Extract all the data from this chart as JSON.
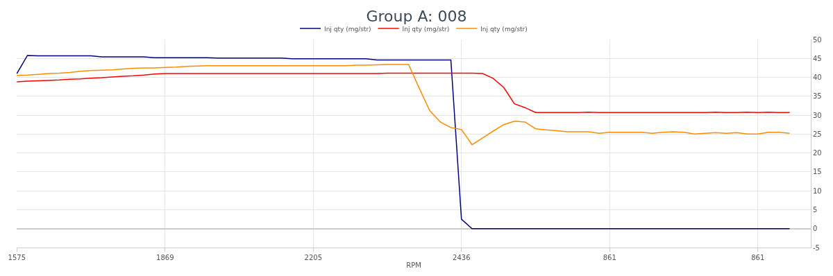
{
  "chart_data": {
    "type": "line",
    "title": "Group A: 008",
    "xlabel": "RPM",
    "categories": [
      "1575",
      null,
      null,
      null,
      null,
      null,
      null,
      null,
      null,
      null,
      null,
      null,
      null,
      null,
      "1869",
      null,
      null,
      null,
      null,
      null,
      null,
      null,
      null,
      null,
      null,
      null,
      null,
      null,
      "2205",
      null,
      null,
      null,
      null,
      null,
      null,
      null,
      null,
      null,
      null,
      null,
      null,
      null,
      "2436",
      null,
      null,
      null,
      null,
      null,
      null,
      null,
      null,
      null,
      null,
      null,
      null,
      null,
      "861",
      null,
      null,
      null,
      null,
      null,
      null,
      null,
      null,
      null,
      null,
      null,
      null,
      null,
      "861",
      null,
      null,
      null,
      null,
      null
    ],
    "series": [
      {
        "name": "Inj qty (mg/str)",
        "color": "#000080",
        "values": [
          41.0,
          45.8,
          45.7,
          45.7,
          45.7,
          45.7,
          45.7,
          45.7,
          45.4,
          45.4,
          45.4,
          45.4,
          45.4,
          45.2,
          45.2,
          45.2,
          45.2,
          45.2,
          45.2,
          45.1,
          45.1,
          45.1,
          45.1,
          45.1,
          45.1,
          45.1,
          44.9,
          44.9,
          44.9,
          44.9,
          44.9,
          44.9,
          44.9,
          44.9,
          44.6,
          44.6,
          44.6,
          44.6,
          44.6,
          44.6,
          44.6,
          44.6,
          2.5,
          0,
          0,
          0,
          0,
          0,
          0,
          0,
          0,
          0,
          0,
          0,
          0,
          0,
          0,
          0,
          0,
          0,
          0,
          0,
          0,
          0,
          0,
          0,
          0,
          0,
          0,
          0,
          0,
          0,
          0,
          0,
          null,
          null
        ]
      },
      {
        "name": "Inj qty (mg/str)",
        "color": "#ff0000",
        "values": [
          38.8,
          39.0,
          39.1,
          39.2,
          39.3,
          39.5,
          39.6,
          39.8,
          39.9,
          40.1,
          40.3,
          40.4,
          40.6,
          40.9,
          41.0,
          41.0,
          41.0,
          41.0,
          41.0,
          41.0,
          41.0,
          41.0,
          41.0,
          41.0,
          41.0,
          41.0,
          41.0,
          41.0,
          41.0,
          41.0,
          41.0,
          41.0,
          41.0,
          41.0,
          41.0,
          41.1,
          41.1,
          41.1,
          41.1,
          41.1,
          41.1,
          41.1,
          41.1,
          41.1,
          41.0,
          39.7,
          37.3,
          33.0,
          32.0,
          30.7,
          30.7,
          30.7,
          30.7,
          30.7,
          30.8,
          30.7,
          30.7,
          30.7,
          30.7,
          30.7,
          30.7,
          30.7,
          30.7,
          30.7,
          30.7,
          30.7,
          30.8,
          30.7,
          30.7,
          30.8,
          30.7,
          30.8,
          30.7,
          30.7,
          null,
          null
        ]
      },
      {
        "name": "Inj qty (mg/str)",
        "color": "#ff8c00",
        "values": [
          40.5,
          40.6,
          40.8,
          41.0,
          41.1,
          41.3,
          41.6,
          41.8,
          41.9,
          42.0,
          42.2,
          42.4,
          42.5,
          42.5,
          42.6,
          42.7,
          42.9,
          43.0,
          43.1,
          43.1,
          43.1,
          43.1,
          43.1,
          43.1,
          43.1,
          43.1,
          43.1,
          43.1,
          43.1,
          43.1,
          43.1,
          43.1,
          43.2,
          43.2,
          43.3,
          43.4,
          43.4,
          43.4,
          37.2,
          31.2,
          28.2,
          26.7,
          26.2,
          22.2,
          24.0,
          25.8,
          27.5,
          28.4,
          28.2,
          26.4,
          26.1,
          25.9,
          25.6,
          25.6,
          25.6,
          25.2,
          25.5,
          25.5,
          25.5,
          25.5,
          25.2,
          25.5,
          25.6,
          25.5,
          25.0,
          25.2,
          25.4,
          25.2,
          25.4,
          25.0,
          25.0,
          25.5,
          25.5,
          25.2,
          null,
          null
        ]
      }
    ],
    "ylim": [
      -5,
      50
    ],
    "yticks": [
      -5,
      0,
      5,
      10,
      15,
      20,
      25,
      30,
      35,
      40,
      45,
      50
    ],
    "grid": true,
    "legend": "top",
    "marker": "none",
    "line_style": "solid"
  }
}
